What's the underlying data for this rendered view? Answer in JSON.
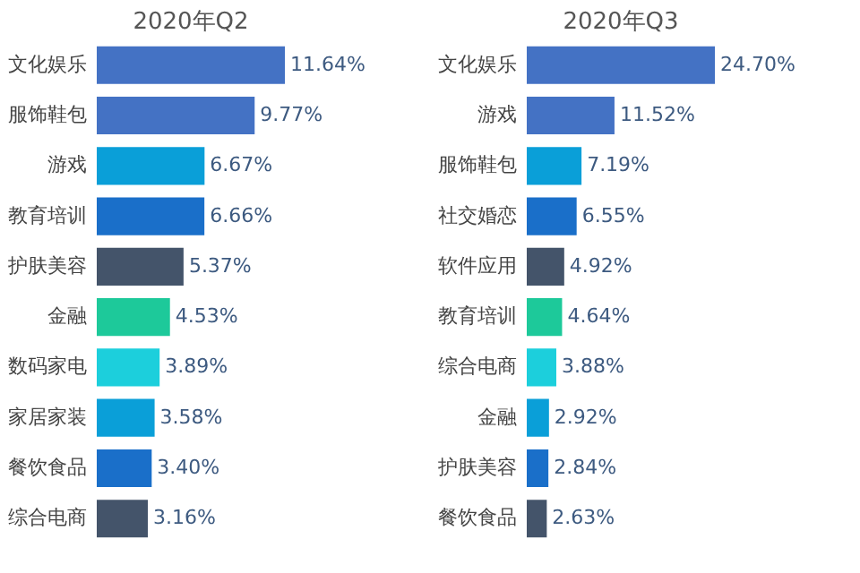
{
  "chart_data": [
    {
      "type": "bar",
      "orientation": "horizontal",
      "title": "2020年Q2",
      "categories": [
        "文化娱乐",
        "服饰鞋包",
        "游戏",
        "教育培训",
        "护肤美容",
        "金融",
        "数码家电",
        "家居家装",
        "餐饮食品",
        "综合电商"
      ],
      "values": [
        11.64,
        9.77,
        6.67,
        6.66,
        5.37,
        4.53,
        3.89,
        3.58,
        3.4,
        3.16
      ],
      "colors": [
        "#4472c4",
        "#4472c4",
        "#0a9fd8",
        "#1a6fc9",
        "#44546a",
        "#1dc99a",
        "#1ccfdc",
        "#0a9fd8",
        "#1a6fc9",
        "#44546a"
      ],
      "value_labels": [
        "11.64%",
        "9.77%",
        "6.67%",
        "6.66%",
        "5.37%",
        "4.53%",
        "3.89%",
        "3.58%",
        "3.40%",
        "3.16%"
      ]
    },
    {
      "type": "bar",
      "orientation": "horizontal",
      "title": "2020年Q3",
      "categories": [
        "文化娱乐",
        "游戏",
        "服饰鞋包",
        "社交婚恋",
        "软件应用",
        "教育培训",
        "综合电商",
        "金融",
        "护肤美容",
        "餐饮食品"
      ],
      "values": [
        24.7,
        11.52,
        7.19,
        6.55,
        4.92,
        4.64,
        3.88,
        2.92,
        2.84,
        2.63
      ],
      "colors": [
        "#4472c4",
        "#4472c4",
        "#0a9fd8",
        "#1a6fc9",
        "#44546a",
        "#1dc99a",
        "#1ccfdc",
        "#0a9fd8",
        "#1a6fc9",
        "#44546a"
      ],
      "value_labels": [
        "24.70%",
        "11.52%",
        "7.19%",
        "6.55%",
        "4.92%",
        "4.64%",
        "3.88%",
        "2.92%",
        "2.84%",
        "2.63%"
      ]
    }
  ]
}
